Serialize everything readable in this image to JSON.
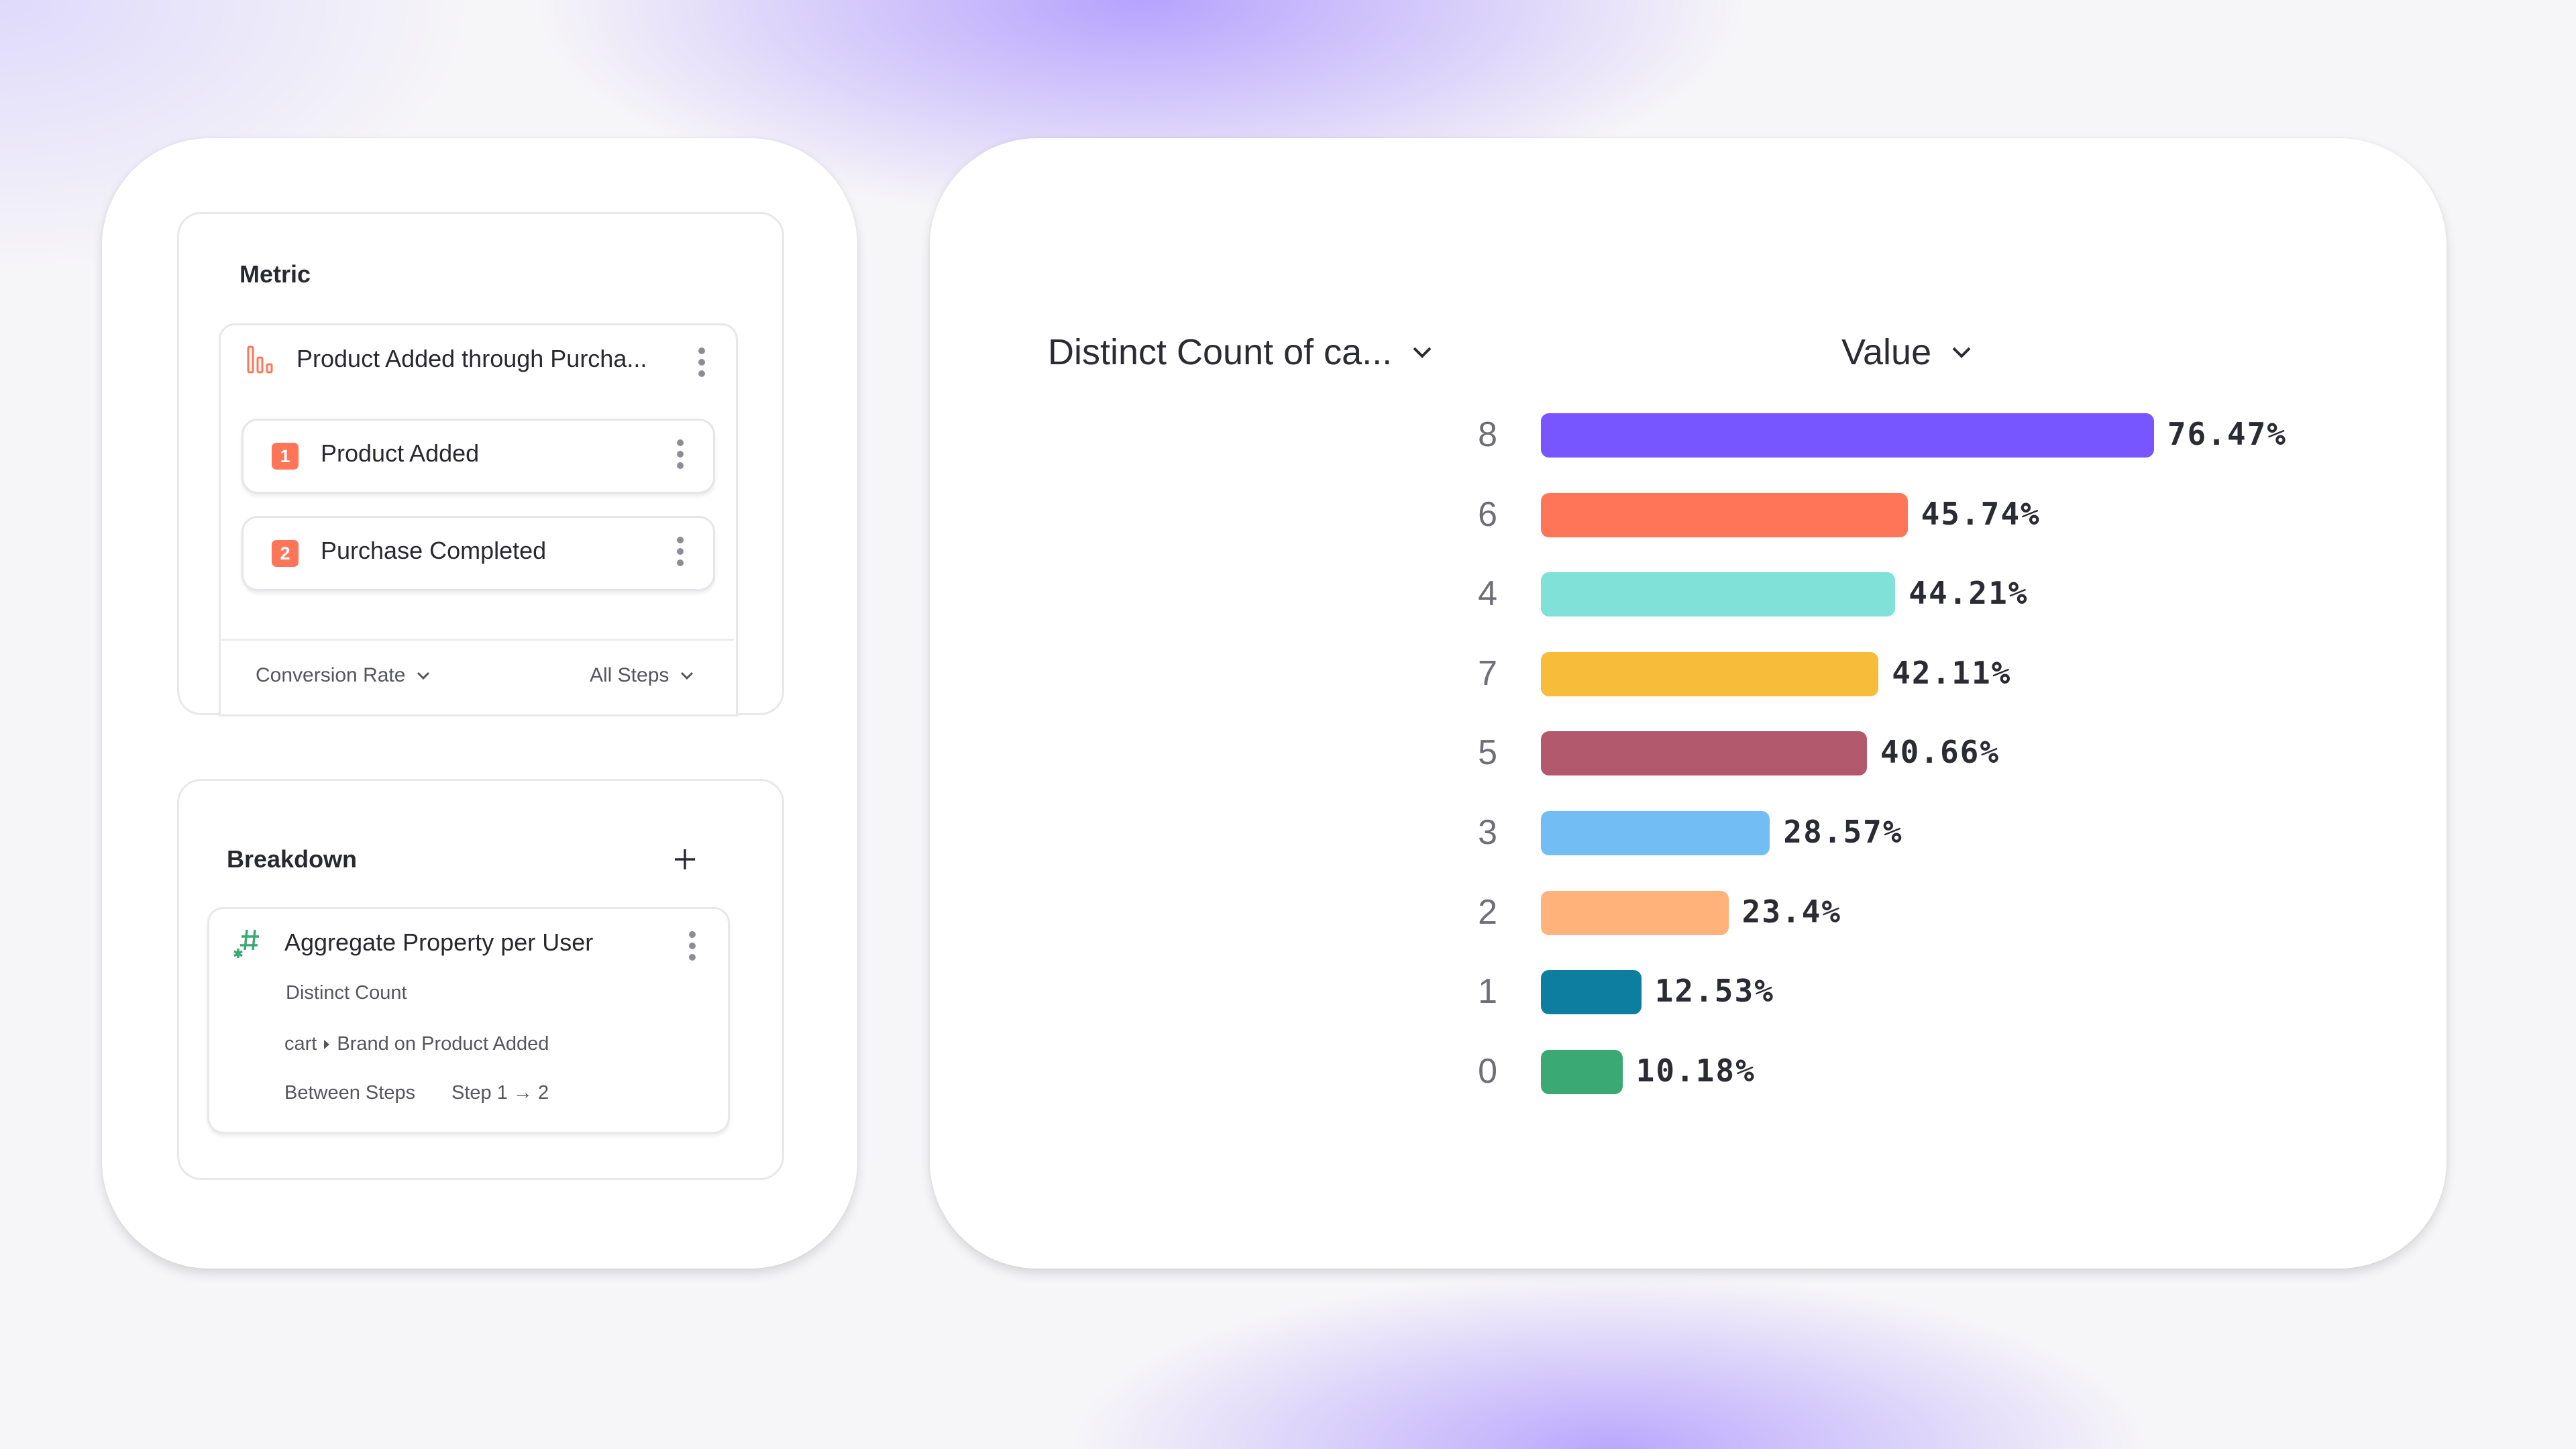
{
  "metric": {
    "label": "Metric",
    "title": "Product Added through Purcha...",
    "title_icon": "funnel-bars-icon",
    "steps": [
      {
        "number": "1",
        "label": "Product Added"
      },
      {
        "number": "2",
        "label": "Purchase Completed"
      }
    ],
    "measure": "Conversion Rate",
    "step_scope": "All Steps",
    "accent_color": "#ff7557"
  },
  "breakdown": {
    "label": "Breakdown",
    "add_icon": "plus-icon",
    "item": {
      "icon": "numeric-property-icon",
      "title": "Aggregate Property per User",
      "aggregation": "Distinct Count",
      "property_parent": "cart",
      "property": "Brand on Product Added",
      "window_label": "Between Steps",
      "window_value": "Step 1 → 2"
    }
  },
  "chart_data": {
    "type": "bar",
    "orientation": "horizontal",
    "category_header": "Distinct Count of ca...",
    "value_header": "Value",
    "categories": [
      "8",
      "6",
      "4",
      "7",
      "5",
      "3",
      "2",
      "1",
      "0"
    ],
    "values": [
      76.47,
      45.74,
      44.21,
      42.11,
      40.66,
      28.57,
      23.4,
      12.53,
      10.18
    ],
    "value_labels": [
      "76.47%",
      "45.74%",
      "44.21%",
      "42.11%",
      "40.66%",
      "28.57%",
      "23.4%",
      "12.53%",
      "10.18%"
    ],
    "colors": [
      "#7856ff",
      "#ff7557",
      "#80e1d9",
      "#f8bc3b",
      "#b2596e",
      "#72bef4",
      "#ffb27a",
      "#0d7ea0",
      "#3ba974"
    ],
    "unit": "%",
    "grid": false
  }
}
